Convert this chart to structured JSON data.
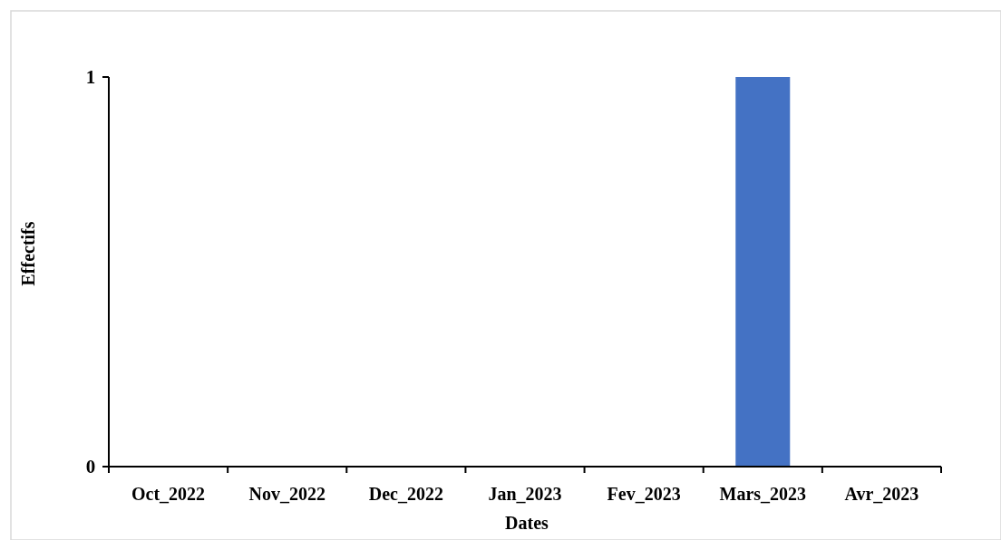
{
  "chart_data": {
    "type": "bar",
    "xlabel": "Dates",
    "ylabel": "Effectifs",
    "categories": [
      "Oct_2022",
      "Nov_2022",
      "Dec_2022",
      "Jan_2023",
      "Fev_2023",
      "Mars_2023",
      "Avr_2023"
    ],
    "values": [
      0,
      0,
      0,
      0,
      0,
      1,
      0
    ],
    "color": "#4472c4",
    "ylim": [
      0,
      1
    ],
    "yticks": [
      0,
      1
    ]
  }
}
